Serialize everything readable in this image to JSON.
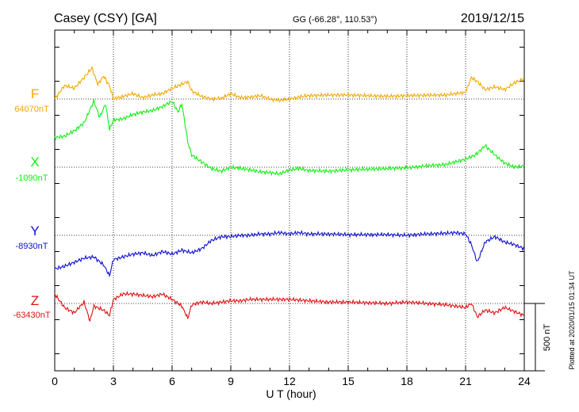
{
  "header": {
    "station": "Casey (CSY)  [GA]",
    "coords": "GG (-66.28°, 110.53°)",
    "date": "2019/12/15"
  },
  "plotted_note": "Plotted at 2020/01/15 01:34 UT",
  "scale_label": "500 nT",
  "colors": {
    "F": "#f5a800",
    "X": "#11ee11",
    "Y": "#1010d0",
    "Z": "#e01010"
  },
  "chart_data": {
    "type": "line",
    "title": "Casey (CSY)  [GA]",
    "xlabel": "U T (hour)",
    "ylabel": "",
    "xlim": [
      0,
      24
    ],
    "x_ticks": [
      "0",
      "3",
      "6",
      "9",
      "12",
      "15",
      "18",
      "21",
      "24"
    ],
    "scale_bar_nT": 500,
    "grid": true,
    "series": [
      {
        "name": "F",
        "baseline_label": "64070nT",
        "baseline": 64070,
        "x": [
          0,
          0.5,
          1,
          1.5,
          1.9,
          2.2,
          2.5,
          2.8,
          3,
          3.5,
          4,
          4.5,
          5,
          5.5,
          6,
          6.5,
          6.8,
          7,
          7.5,
          8,
          8.5,
          9,
          9.5,
          10,
          10.5,
          11,
          11.5,
          12,
          12.5,
          13,
          14,
          15,
          16,
          17,
          18,
          19,
          20,
          20.5,
          21,
          21.3,
          21.6,
          22,
          22.5,
          23,
          23.5,
          24
        ],
        "values": [
          64070,
          64170,
          64150,
          64230,
          64300,
          64180,
          64240,
          64170,
          64070,
          64090,
          64110,
          64080,
          64100,
          64110,
          64150,
          64180,
          64200,
          64130,
          64090,
          64070,
          64075,
          64110,
          64080,
          64085,
          64095,
          64070,
          64060,
          64070,
          64085,
          64095,
          64100,
          64100,
          64095,
          64090,
          64095,
          64098,
          64100,
          64110,
          64120,
          64230,
          64200,
          64140,
          64160,
          64140,
          64190,
          64220
        ]
      },
      {
        "name": "X",
        "baseline_label": "-1090nT",
        "baseline": -1090,
        "x": [
          0,
          0.5,
          1,
          1.5,
          2,
          2.3,
          2.6,
          2.8,
          3,
          3.5,
          4,
          4.5,
          5,
          5.5,
          6,
          6.3,
          6.5,
          6.8,
          7,
          7.5,
          8,
          8.5,
          9,
          9.5,
          10,
          10.5,
          11,
          11.5,
          12,
          12.5,
          13,
          14,
          15,
          16,
          17,
          18,
          19,
          20,
          21,
          21.5,
          22,
          22.5,
          23,
          23.5,
          24
        ],
        "values": [
          -870,
          -860,
          -820,
          -760,
          -600,
          -720,
          -620,
          -810,
          -740,
          -730,
          -700,
          -680,
          -670,
          -640,
          -600,
          -680,
          -620,
          -900,
          -1000,
          -1050,
          -1100,
          -1120,
          -1090,
          -1100,
          -1110,
          -1125,
          -1130,
          -1140,
          -1110,
          -1100,
          -1115,
          -1120,
          -1110,
          -1105,
          -1100,
          -1095,
          -1080,
          -1070,
          -1030,
          -1000,
          -930,
          -1000,
          -1060,
          -1090,
          -1080
        ]
      },
      {
        "name": "Y",
        "baseline_label": "-8930nT",
        "baseline": -8930,
        "x": [
          0,
          0.5,
          1,
          1.5,
          2,
          2.5,
          2.8,
          3,
          3.5,
          4,
          4.5,
          5,
          5.5,
          6,
          6.5,
          7,
          7.5,
          8,
          8.5,
          9,
          9.5,
          10,
          10.5,
          11,
          11.5,
          12,
          12.5,
          13,
          14,
          15,
          16,
          17,
          18,
          19,
          20,
          20.5,
          21,
          21.3,
          21.6,
          22,
          22.5,
          23,
          23.5,
          24
        ],
        "values": [
          -9180,
          -9160,
          -9130,
          -9100,
          -9090,
          -9150,
          -9230,
          -9110,
          -9090,
          -9070,
          -9060,
          -9080,
          -9050,
          -9070,
          -9040,
          -9060,
          -9030,
          -8970,
          -8940,
          -8940,
          -8930,
          -8930,
          -8920,
          -8920,
          -8910,
          -8920,
          -8910,
          -8920,
          -8920,
          -8925,
          -8925,
          -8925,
          -8930,
          -8920,
          -8915,
          -8910,
          -8920,
          -9000,
          -9130,
          -8980,
          -8940,
          -8980,
          -9000,
          -9030
        ]
      },
      {
        "name": "Z",
        "baseline_label": "-63430nT",
        "baseline": -63430,
        "x": [
          0,
          0.5,
          1,
          1.5,
          1.8,
          2,
          2.5,
          2.8,
          3,
          3.5,
          4,
          4.5,
          5,
          5.5,
          6,
          6.5,
          6.8,
          7,
          7.5,
          8,
          8.5,
          9,
          9.5,
          10,
          11,
          12,
          13,
          14,
          15,
          16,
          17,
          18,
          19,
          20,
          20.5,
          21,
          21.3,
          21.6,
          22,
          22.5,
          23,
          23.5,
          24
        ],
        "values": [
          -63360,
          -63460,
          -63500,
          -63420,
          -63560,
          -63450,
          -63480,
          -63520,
          -63400,
          -63360,
          -63360,
          -63370,
          -63380,
          -63360,
          -63400,
          -63450,
          -63540,
          -63440,
          -63420,
          -63430,
          -63420,
          -63410,
          -63410,
          -63400,
          -63400,
          -63400,
          -63410,
          -63420,
          -63420,
          -63425,
          -63430,
          -63420,
          -63430,
          -63440,
          -63450,
          -63460,
          -63430,
          -63530,
          -63480,
          -63500,
          -63460,
          -63490,
          -63520
        ]
      }
    ]
  }
}
